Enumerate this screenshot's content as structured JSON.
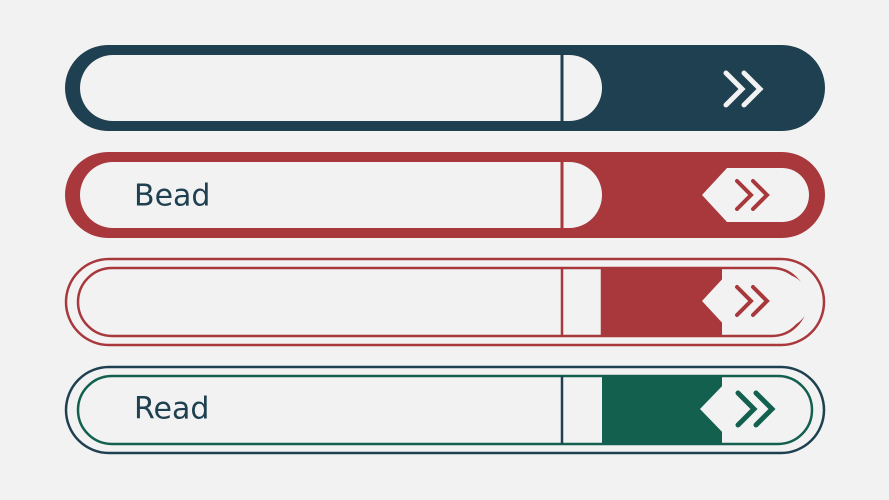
{
  "fields": [
    {
      "label": "Bead"
    },
    {
      "label": "Read"
    }
  ]
}
